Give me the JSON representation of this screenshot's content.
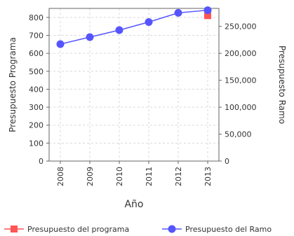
{
  "chart_data": {
    "type": "line",
    "x": [
      "2008",
      "2009",
      "2010",
      "2011",
      "2012",
      "2013"
    ],
    "xlabel": "Año",
    "ylabel_left": "Presupuesto Programa",
    "ylabel_right": "Presupuesto Ramo",
    "ylim_left": [
      0,
      850
    ],
    "ylim_right": [
      0,
      283333
    ],
    "yticks_left": [
      "0",
      "100",
      "200",
      "300",
      "400",
      "500",
      "600",
      "700",
      "800"
    ],
    "yticks_right": [
      "0",
      "50,000",
      "100,000",
      "150,000",
      "200,000",
      "250,000"
    ],
    "grid": true,
    "legend": "bottom",
    "series": [
      {
        "name": "Presupuesto del programa",
        "axis": "left",
        "color": "#ff5555",
        "marker": "square",
        "values": [
          null,
          null,
          null,
          null,
          null,
          810
        ]
      },
      {
        "name": "Presupuesto del Ramo",
        "axis": "right",
        "color": "#5555ff",
        "marker": "circle",
        "values": [
          217000,
          230000,
          243000,
          258000,
          275000,
          280000
        ]
      }
    ]
  }
}
